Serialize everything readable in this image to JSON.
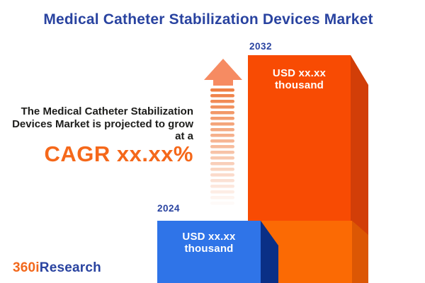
{
  "header": {
    "title": "Medical Catheter Stabilization Devices Market"
  },
  "tagline": {
    "lines": [
      "The Medical Catheter Stabilization",
      "Devices Market is projected to grow",
      "at a"
    ],
    "cagr": "CAGR xx.xx%",
    "cagr_color": "#F5681A",
    "text_color": "#1D1D1B"
  },
  "chart_data": {
    "type": "bar",
    "categories": [
      "2024",
      "2032"
    ],
    "values": [
      "xx.xx",
      "xx.xx"
    ],
    "value_unit": "USD thousand",
    "value_labels": [
      "USD xx.xx thousand",
      "USD xx.xx thousand"
    ],
    "title": "Medical Catheter Stabilization Devices Market",
    "xlabel": "",
    "ylabel": "",
    "grid": false,
    "legend": "none",
    "bar_face_colors": [
      "#2F74E8",
      "#F84B03"
    ],
    "bar_side_colors": [
      "#0A2F86",
      "#D23E08"
    ],
    "baseline_block_face_color": "#FB6A04",
    "baseline_block_side_color": "#DC5704",
    "growth_arrow_color": "#F68B62",
    "title_color": "#2943A0",
    "year_label_color": "#2943A0"
  },
  "bars": {
    "b2024": {
      "year": "2024",
      "value_label": "USD xx.xx thousand"
    },
    "b2032": {
      "year": "2032",
      "value_label": "USD xx.xx thousand"
    }
  },
  "logo": {
    "prefix": "360i",
    "suffix": "Research",
    "prefix_color": "#F2681C",
    "suffix_color": "#2943A0"
  }
}
